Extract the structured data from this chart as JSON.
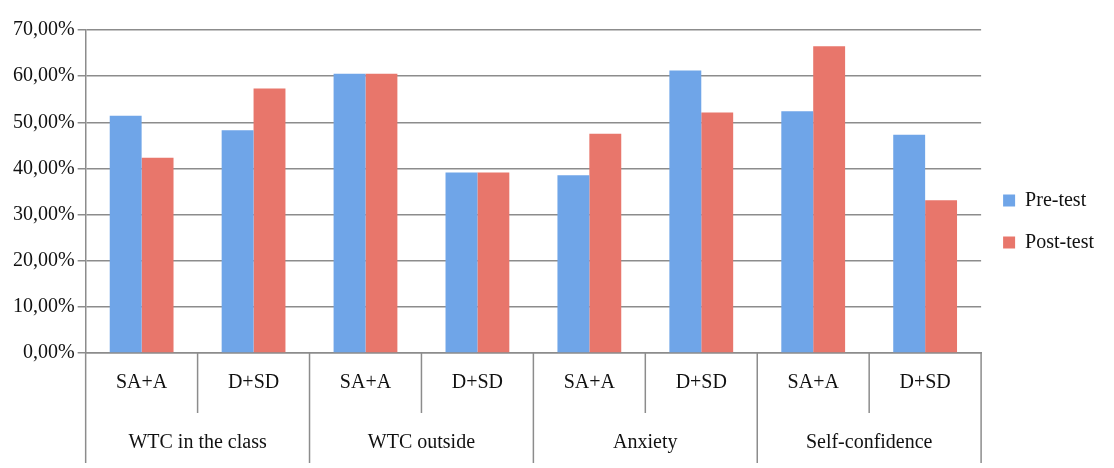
{
  "chart_data": {
    "type": "bar",
    "categories": [
      "SA+A",
      "D+SD",
      "SA+A",
      "D+SD",
      "SA+A",
      "D+SD",
      "SA+A",
      "D+SD"
    ],
    "annotations": [
      "WTC in the class",
      "WTC outside",
      "Anxiety",
      "Self-confidence"
    ],
    "series": [
      {
        "name": "Pre-test",
        "color": "#6fa5e8",
        "values": [
          51.4,
          48.3,
          60.5,
          39.1,
          38.5,
          61.2,
          52.4,
          47.3
        ]
      },
      {
        "name": "Post-test",
        "color": "#e8766b",
        "values": [
          42.3,
          57.3,
          60.5,
          39.1,
          47.5,
          52.1,
          66.5,
          33.1
        ]
      }
    ],
    "ylim": [
      0,
      70
    ],
    "yticks": [
      {
        "value": 0,
        "label": "0,00%"
      },
      {
        "value": 10,
        "label": "10,00%"
      },
      {
        "value": 20,
        "label": "20,00%"
      },
      {
        "value": 30,
        "label": "30,00%"
      },
      {
        "value": 40,
        "label": "40,00%"
      },
      {
        "value": 50,
        "label": "50,00%"
      },
      {
        "value": 60,
        "label": "60,00%"
      },
      {
        "value": 70,
        "label": "70,00%"
      }
    ],
    "grid": "y",
    "legend": "right"
  }
}
